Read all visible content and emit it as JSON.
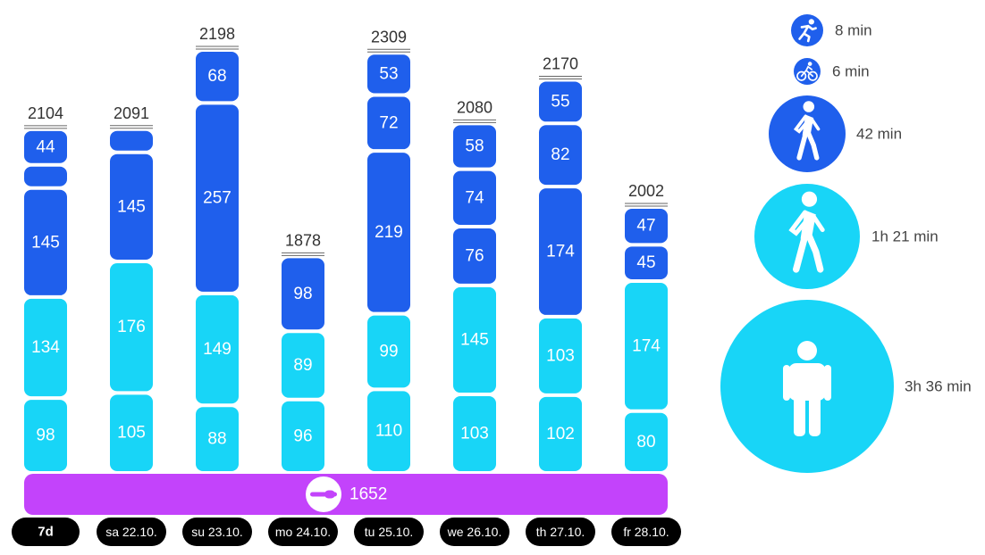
{
  "colors": {
    "dark": "#1f5fec",
    "light": "#18d5f7",
    "base": "#c343fb",
    "pill": "#000000"
  },
  "chart_data": {
    "type": "bar",
    "stacked": true,
    "categories": [
      "sa 22.10.",
      "su 23.10.",
      "mo 24.10.",
      "tu 25.10.",
      "we 26.10.",
      "th 27.10.",
      "fr 28.10."
    ],
    "first_category": "7d",
    "totals": [
      2104,
      2091,
      2198,
      1878,
      2309,
      2080,
      2170,
      2002
    ],
    "columns": [
      {
        "label": "7d",
        "segments": [
          {
            "value": 98,
            "tone": "light"
          },
          {
            "value": 134,
            "tone": "light"
          },
          {
            "value": 145,
            "tone": "dark"
          },
          {
            "value": null,
            "tone": "dark"
          },
          {
            "value": 44,
            "tone": "dark"
          }
        ]
      },
      {
        "label": "sa 22.10.",
        "segments": [
          {
            "value": 105,
            "tone": "light"
          },
          {
            "value": 176,
            "tone": "light"
          },
          {
            "value": 145,
            "tone": "dark"
          },
          {
            "value": null,
            "tone": "dark"
          }
        ]
      },
      {
        "label": "su 23.10.",
        "segments": [
          {
            "value": 88,
            "tone": "light"
          },
          {
            "value": 149,
            "tone": "light"
          },
          {
            "value": 257,
            "tone": "dark"
          },
          {
            "value": 68,
            "tone": "dark"
          }
        ]
      },
      {
        "label": "mo 24.10.",
        "segments": [
          {
            "value": 96,
            "tone": "light"
          },
          {
            "value": 89,
            "tone": "light"
          },
          {
            "value": 98,
            "tone": "dark"
          }
        ]
      },
      {
        "label": "tu 25.10.",
        "segments": [
          {
            "value": 110,
            "tone": "light"
          },
          {
            "value": 99,
            "tone": "light"
          },
          {
            "value": 219,
            "tone": "dark"
          },
          {
            "value": 72,
            "tone": "dark"
          },
          {
            "value": 53,
            "tone": "dark"
          }
        ]
      },
      {
        "label": "we 26.10.",
        "segments": [
          {
            "value": 103,
            "tone": "light"
          },
          {
            "value": 145,
            "tone": "light"
          },
          {
            "value": 76,
            "tone": "dark"
          },
          {
            "value": 74,
            "tone": "dark"
          },
          {
            "value": 58,
            "tone": "dark"
          }
        ]
      },
      {
        "label": "th 27.10.",
        "segments": [
          {
            "value": 102,
            "tone": "light"
          },
          {
            "value": 103,
            "tone": "light"
          },
          {
            "value": 174,
            "tone": "dark"
          },
          {
            "value": 82,
            "tone": "dark"
          },
          {
            "value": 55,
            "tone": "dark"
          }
        ]
      },
      {
        "label": "fr 28.10.",
        "segments": [
          {
            "value": 80,
            "tone": "light"
          },
          {
            "value": 174,
            "tone": "light"
          },
          {
            "value": 45,
            "tone": "dark"
          },
          {
            "value": 47,
            "tone": "dark"
          }
        ]
      }
    ],
    "base": {
      "value": 1652,
      "icon": "pill-icon"
    },
    "legend": [
      {
        "icon": "running-icon",
        "label": "8 min",
        "tone": "dark"
      },
      {
        "icon": "cycling-icon",
        "label": "6 min",
        "tone": "dark"
      },
      {
        "icon": "walking-icon",
        "label": "42 min",
        "tone": "dark"
      },
      {
        "icon": "walking-icon",
        "label": "1h 21 min",
        "tone": "light"
      },
      {
        "icon": "standing-person-icon",
        "label": "3h 36 min",
        "tone": "light"
      }
    ]
  }
}
